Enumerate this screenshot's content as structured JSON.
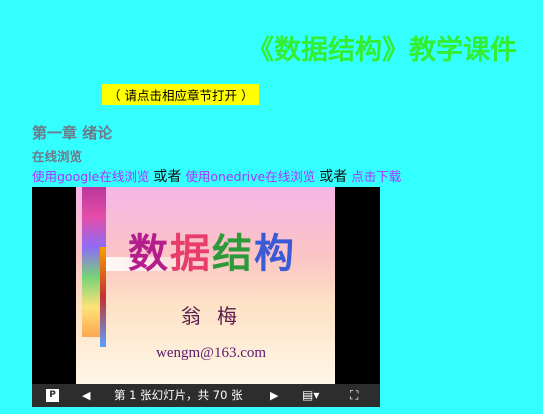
{
  "page": {
    "title": "《数据结构》教学课件",
    "hint": "（ 请点击相应章节打开 ）"
  },
  "chapter": {
    "heading": "第一章 绪论",
    "online_label": "在线浏览",
    "links": [
      {
        "label": "使用google在线浏览"
      },
      {
        "label": "使用onedrive在线浏览"
      },
      {
        "label": "点击下载"
      }
    ],
    "separator": "或者"
  },
  "viewer": {
    "slide": {
      "title_chars": [
        "数",
        "据",
        "结",
        "构"
      ],
      "author": "翁梅",
      "email": "wengm@163.com"
    },
    "controls": {
      "app_icon": "powerpoint-icon",
      "prev_icon": "triangle-left-icon",
      "slide_counter": "第 1 张幻灯片，共 70 张",
      "next_icon": "triangle-right-icon",
      "notes_icon": "notes-icon",
      "fullscreen_icon": "fullscreen-icon"
    }
  },
  "colors": {
    "background": "#33ffff",
    "title": "#33ee33",
    "hint_bg": "#ffff00",
    "link": "#aa33ff",
    "heading": "#6b7b8c",
    "control_bar": "#2d2d2d"
  }
}
